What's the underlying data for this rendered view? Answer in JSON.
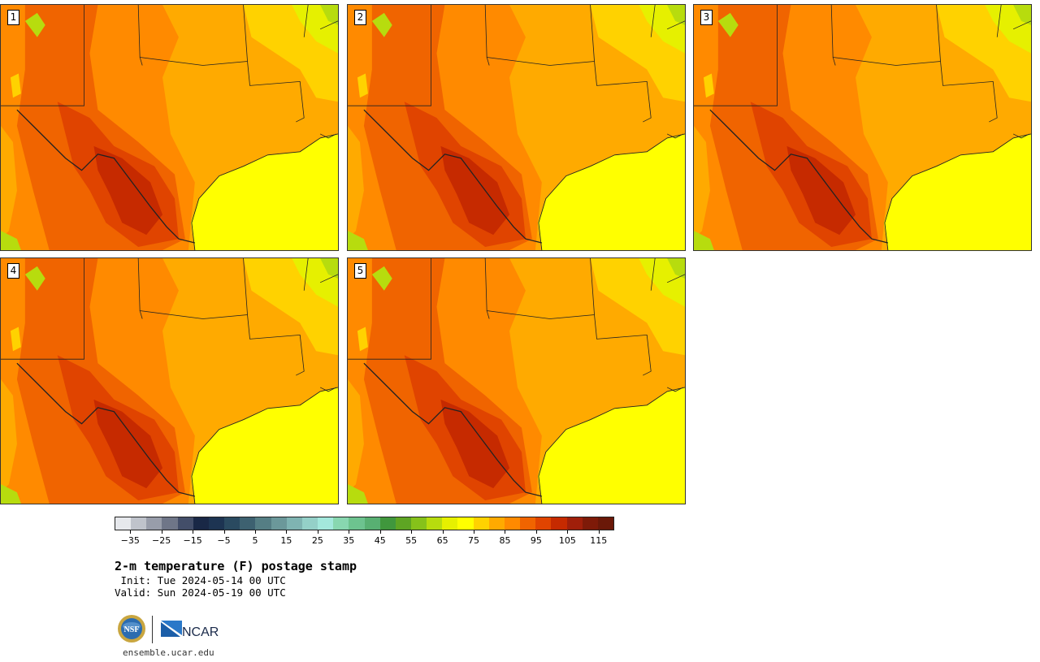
{
  "panels": [
    {
      "label": "1"
    },
    {
      "label": "2"
    },
    {
      "label": "3"
    },
    {
      "label": "4"
    },
    {
      "label": "5"
    }
  ],
  "colorbar": {
    "colors": [
      "#e6e8ec",
      "#bfc3cb",
      "#989daa",
      "#6f7688",
      "#434e69",
      "#192846",
      "#1d3452",
      "#2a4a60",
      "#3d6170",
      "#557e84",
      "#6b989a",
      "#7fb4b2",
      "#94d0c8",
      "#a3e8dc",
      "#88d7b0",
      "#6dc38f",
      "#58b072",
      "#40973d",
      "#5ea523",
      "#86c21a",
      "#b7dc0e",
      "#e6f000",
      "#ffff00",
      "#ffd200",
      "#ffaa00",
      "#ff8a00",
      "#f06400",
      "#e04400",
      "#c62a00",
      "#a01f0a",
      "#7e1a08",
      "#6a1808"
    ],
    "tick_labels": [
      "−35",
      "−25",
      "−15",
      "−5",
      "5",
      "15",
      "25",
      "35",
      "45",
      "55",
      "65",
      "75",
      "85",
      "95",
      "105",
      "115"
    ],
    "tick_values": [
      -35,
      -25,
      -15,
      -5,
      5,
      15,
      25,
      35,
      45,
      55,
      65,
      75,
      85,
      95,
      105,
      115
    ],
    "min": -40,
    "max": 120
  },
  "title": "2-m temperature (F) postage stamp",
  "init_line": " Init: Tue 2024-05-14 00 UTC",
  "valid_line": "Valid: Sun 2024-05-19 00 UTC",
  "logos": {
    "nsf_text": "NSF",
    "ncar_text": "NCAR"
  },
  "footer_url": "ensemble.ucar.edu"
}
